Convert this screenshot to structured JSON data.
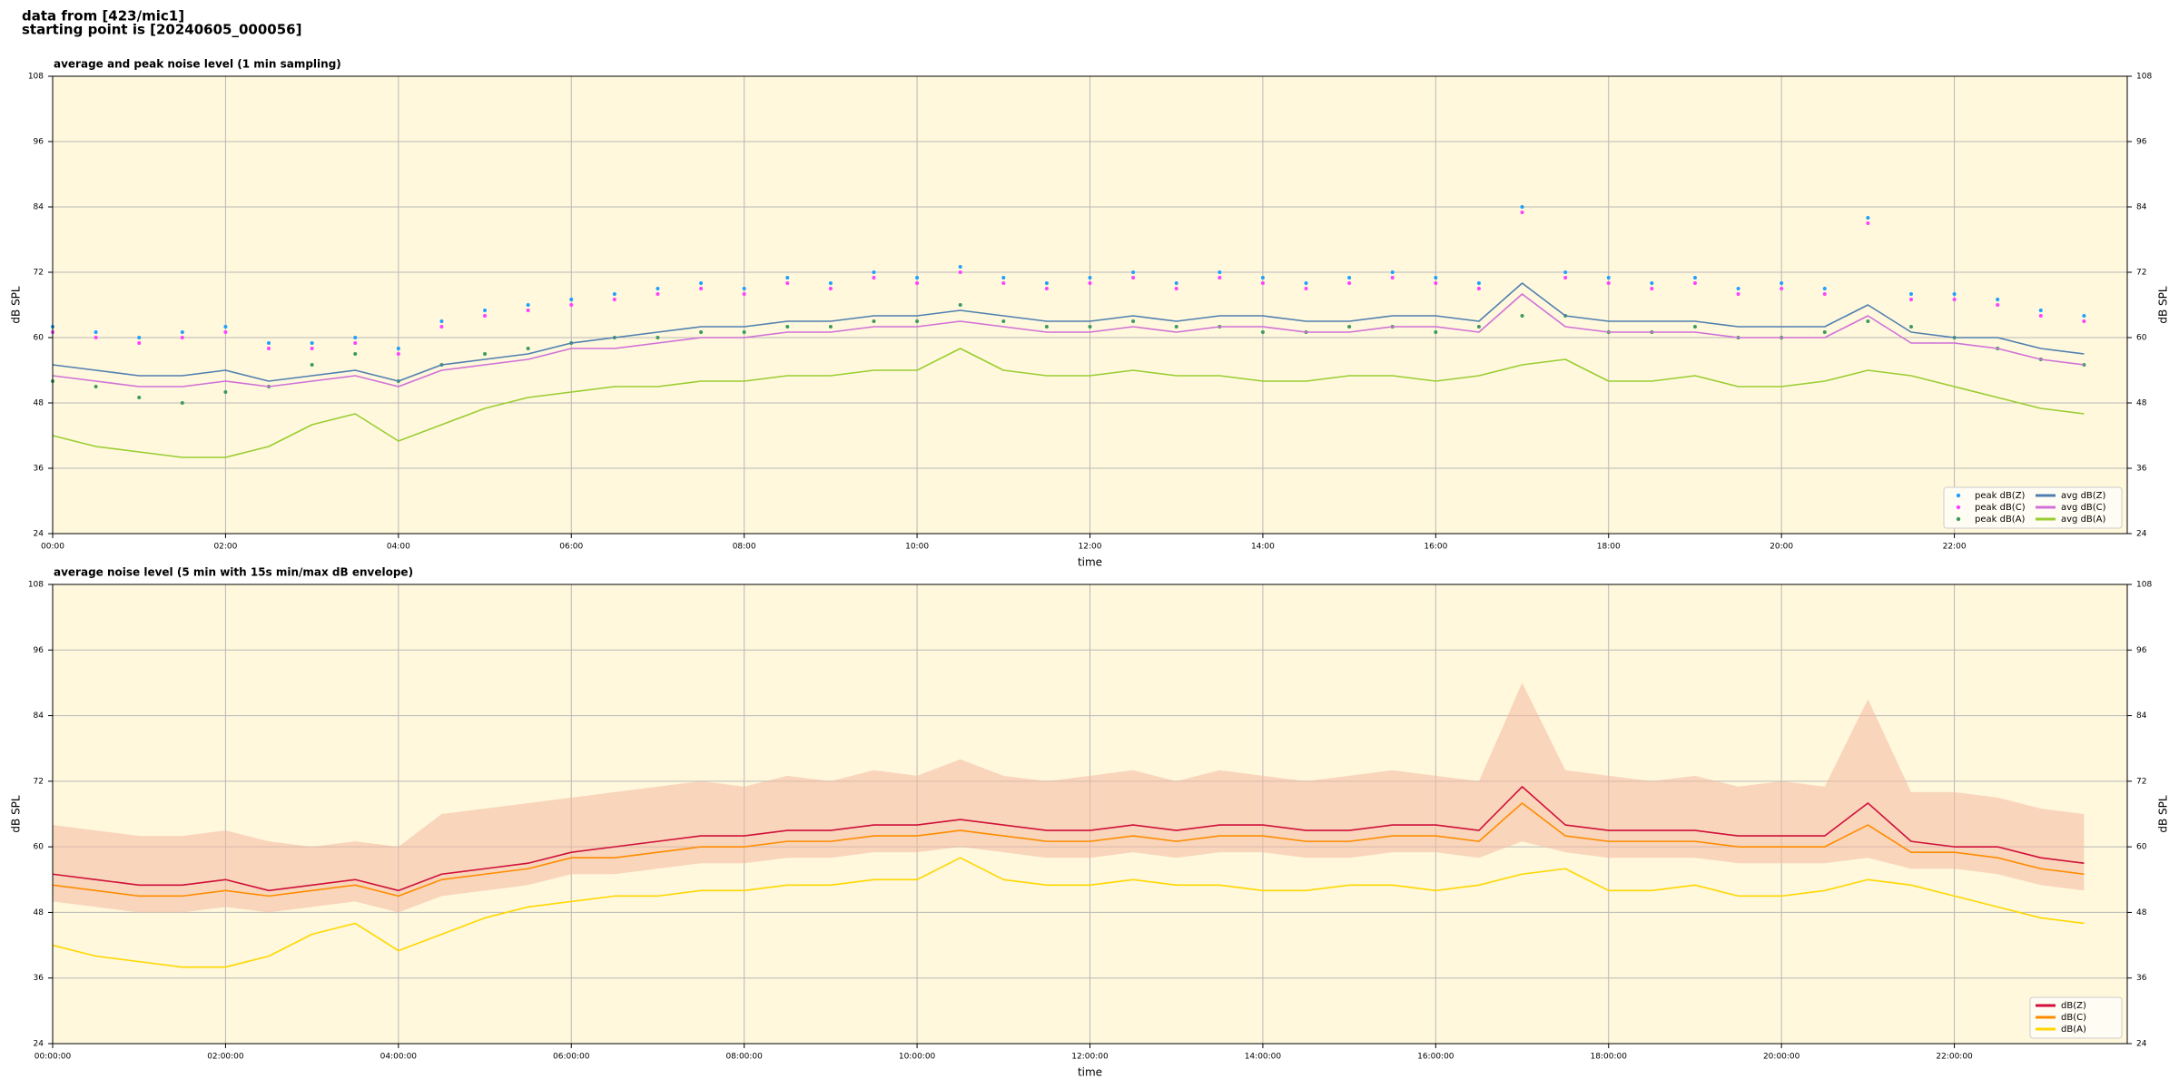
{
  "header": {
    "line1": "data from [423/mic1]",
    "line2": "starting point is [20240605_000056]"
  },
  "chart_data": [
    {
      "type": "line",
      "title": "average and peak noise level (1 min sampling)",
      "xlabel": "time",
      "ylabel": "dB SPL",
      "xlim": [
        0,
        24
      ],
      "ylim": [
        24,
        108
      ],
      "yticks": [
        24,
        36,
        48,
        60,
        72,
        84,
        96,
        108
      ],
      "xticks": [
        {
          "value": 0,
          "label": "00:00"
        },
        {
          "value": 2,
          "label": "02:00"
        },
        {
          "value": 4,
          "label": "04:00"
        },
        {
          "value": 6,
          "label": "06:00"
        },
        {
          "value": 8,
          "label": "08:00"
        },
        {
          "value": 10,
          "label": "10:00"
        },
        {
          "value": 12,
          "label": "12:00"
        },
        {
          "value": 14,
          "label": "14:00"
        },
        {
          "value": 16,
          "label": "16:00"
        },
        {
          "value": 18,
          "label": "18:00"
        },
        {
          "value": 20,
          "label": "20:00"
        },
        {
          "value": 22,
          "label": "22:00"
        }
      ],
      "grid": true,
      "background": "#fff8dc",
      "legend": "lower right",
      "legend_columns": 2,
      "x": [
        0,
        0.5,
        1,
        1.5,
        2,
        2.5,
        3,
        3.5,
        4,
        4.5,
        5,
        5.5,
        6,
        6.5,
        7,
        7.5,
        8,
        8.5,
        9,
        9.5,
        10,
        10.5,
        11,
        11.5,
        12,
        12.5,
        13,
        13.5,
        14,
        14.5,
        15,
        15.5,
        16,
        16.5,
        17,
        17.5,
        18,
        18.5,
        19,
        19.5,
        20,
        20.5,
        21,
        21.5,
        22,
        22.5,
        23,
        23.5
      ],
      "series": [
        {
          "name": "peak dB(Z)",
          "type": "scatter",
          "color": "#1f9fff",
          "values": [
            62,
            61,
            60,
            61,
            62,
            59,
            59,
            60,
            58,
            63,
            65,
            66,
            67,
            68,
            69,
            70,
            69,
            71,
            70,
            72,
            71,
            73,
            71,
            70,
            71,
            72,
            70,
            72,
            71,
            70,
            71,
            72,
            71,
            70,
            84,
            72,
            71,
            70,
            71,
            69,
            70,
            69,
            82,
            68,
            68,
            67,
            65,
            64
          ]
        },
        {
          "name": "peak dB(C)",
          "type": "scatter",
          "color": "#ff40ff",
          "values": [
            61,
            60,
            59,
            60,
            61,
            58,
            58,
            59,
            57,
            62,
            64,
            65,
            66,
            67,
            68,
            69,
            68,
            70,
            69,
            71,
            70,
            72,
            70,
            69,
            70,
            71,
            69,
            71,
            70,
            69,
            70,
            71,
            70,
            69,
            83,
            71,
            70,
            69,
            70,
            68,
            69,
            68,
            81,
            67,
            67,
            66,
            64,
            63
          ]
        },
        {
          "name": "peak dB(A)",
          "type": "scatter",
          "color": "#3c9a5f",
          "values": [
            52,
            51,
            49,
            48,
            50,
            51,
            55,
            57,
            52,
            55,
            57,
            58,
            59,
            60,
            60,
            61,
            61,
            62,
            62,
            63,
            63,
            66,
            63,
            62,
            62,
            63,
            62,
            62,
            61,
            61,
            62,
            62,
            61,
            62,
            64,
            64,
            61,
            61,
            62,
            60,
            60,
            61,
            63,
            62,
            60,
            58,
            56,
            55
          ]
        },
        {
          "name": "avg dB(Z)",
          "type": "line",
          "color": "#4f7fb0",
          "values": [
            55,
            54,
            53,
            53,
            54,
            52,
            53,
            54,
            52,
            55,
            56,
            57,
            59,
            60,
            61,
            62,
            62,
            63,
            63,
            64,
            64,
            65,
            64,
            63,
            63,
            64,
            63,
            64,
            64,
            63,
            63,
            64,
            64,
            63,
            70,
            64,
            63,
            63,
            63,
            62,
            62,
            62,
            66,
            61,
            60,
            60,
            58,
            57
          ]
        },
        {
          "name": "avg dB(C)",
          "type": "line",
          "color": "#d070d8",
          "values": [
            53,
            52,
            51,
            51,
            52,
            51,
            52,
            53,
            51,
            54,
            55,
            56,
            58,
            58,
            59,
            60,
            60,
            61,
            61,
            62,
            62,
            63,
            62,
            61,
            61,
            62,
            61,
            62,
            62,
            61,
            61,
            62,
            62,
            61,
            68,
            62,
            61,
            61,
            61,
            60,
            60,
            60,
            64,
            59,
            59,
            58,
            56,
            55
          ]
        },
        {
          "name": "avg dB(A)",
          "type": "line",
          "color": "#9acd32",
          "values": [
            42,
            40,
            39,
            38,
            38,
            40,
            44,
            46,
            41,
            44,
            47,
            49,
            50,
            51,
            51,
            52,
            52,
            53,
            53,
            54,
            54,
            58,
            54,
            53,
            53,
            54,
            53,
            53,
            52,
            52,
            53,
            53,
            52,
            53,
            55,
            56,
            52,
            52,
            53,
            51,
            51,
            52,
            54,
            53,
            51,
            49,
            47,
            46
          ]
        }
      ]
    },
    {
      "type": "line",
      "title": "average noise level (5 min with 15s min/max dB envelope)",
      "xlabel": "time",
      "ylabel": "dB SPL",
      "xlim": [
        0,
        24
      ],
      "ylim": [
        24,
        108
      ],
      "yticks": [
        24,
        36,
        48,
        60,
        72,
        84,
        96,
        108
      ],
      "xticks": [
        {
          "value": 0,
          "label": "00:00:00"
        },
        {
          "value": 2,
          "label": "02:00:00"
        },
        {
          "value": 4,
          "label": "04:00:00"
        },
        {
          "value": 6,
          "label": "06:00:00"
        },
        {
          "value": 8,
          "label": "08:00:00"
        },
        {
          "value": 10,
          "label": "10:00:00"
        },
        {
          "value": 12,
          "label": "12:00:00"
        },
        {
          "value": 14,
          "label": "14:00:00"
        },
        {
          "value": 16,
          "label": "16:00:00"
        },
        {
          "value": 18,
          "label": "18:00:00"
        },
        {
          "value": 20,
          "label": "20:00:00"
        },
        {
          "value": 22,
          "label": "22:00:00"
        }
      ],
      "grid": true,
      "background": "#fff8dc",
      "legend": "lower right",
      "legend_columns": 1,
      "x": [
        0,
        0.5,
        1,
        1.5,
        2,
        2.5,
        3,
        3.5,
        4,
        4.5,
        5,
        5.5,
        6,
        6.5,
        7,
        7.5,
        8,
        8.5,
        9,
        9.5,
        10,
        10.5,
        11,
        11.5,
        12,
        12.5,
        13,
        13.5,
        14,
        14.5,
        15,
        15.5,
        16,
        16.5,
        17,
        17.5,
        18,
        18.5,
        19,
        19.5,
        20,
        20.5,
        21,
        21.5,
        22,
        22.5,
        23,
        23.5
      ],
      "envelope": {
        "color": "#f4b8a0",
        "upper": [
          64,
          63,
          62,
          62,
          63,
          61,
          60,
          61,
          60,
          66,
          67,
          68,
          69,
          70,
          71,
          72,
          71,
          73,
          72,
          74,
          73,
          76,
          73,
          72,
          73,
          74,
          72,
          74,
          73,
          72,
          73,
          74,
          73,
          72,
          90,
          74,
          73,
          72,
          73,
          71,
          72,
          71,
          87,
          70,
          70,
          69,
          67,
          66
        ],
        "lower": [
          50,
          49,
          48,
          48,
          49,
          48,
          49,
          50,
          48,
          51,
          52,
          53,
          55,
          55,
          56,
          57,
          57,
          58,
          58,
          59,
          59,
          60,
          59,
          58,
          58,
          59,
          58,
          59,
          59,
          58,
          58,
          59,
          59,
          58,
          61,
          59,
          58,
          58,
          58,
          57,
          57,
          57,
          58,
          56,
          56,
          55,
          53,
          52
        ]
      },
      "series": [
        {
          "name": "dB(Z)",
          "type": "line",
          "color": "#d0103a",
          "values": [
            55,
            54,
            53,
            53,
            54,
            52,
            53,
            54,
            52,
            55,
            56,
            57,
            59,
            60,
            61,
            62,
            62,
            63,
            63,
            64,
            64,
            65,
            64,
            63,
            63,
            64,
            63,
            64,
            64,
            63,
            63,
            64,
            64,
            63,
            71,
            64,
            63,
            63,
            63,
            62,
            62,
            62,
            68,
            61,
            60,
            60,
            58,
            57
          ]
        },
        {
          "name": "dB(C)",
          "type": "line",
          "color": "#ff8c00",
          "values": [
            53,
            52,
            51,
            51,
            52,
            51,
            52,
            53,
            51,
            54,
            55,
            56,
            58,
            58,
            59,
            60,
            60,
            61,
            61,
            62,
            62,
            63,
            62,
            61,
            61,
            62,
            61,
            62,
            62,
            61,
            61,
            62,
            62,
            61,
            68,
            62,
            61,
            61,
            61,
            60,
            60,
            60,
            64,
            59,
            59,
            58,
            56,
            55
          ]
        },
        {
          "name": "dB(A)",
          "type": "line",
          "color": "#ffd700",
          "values": [
            42,
            40,
            39,
            38,
            38,
            40,
            44,
            46,
            41,
            44,
            47,
            49,
            50,
            51,
            51,
            52,
            52,
            53,
            53,
            54,
            54,
            58,
            54,
            53,
            53,
            54,
            53,
            53,
            52,
            52,
            53,
            53,
            52,
            53,
            55,
            56,
            52,
            52,
            53,
            51,
            51,
            52,
            54,
            53,
            51,
            49,
            47,
            46
          ]
        }
      ]
    }
  ]
}
